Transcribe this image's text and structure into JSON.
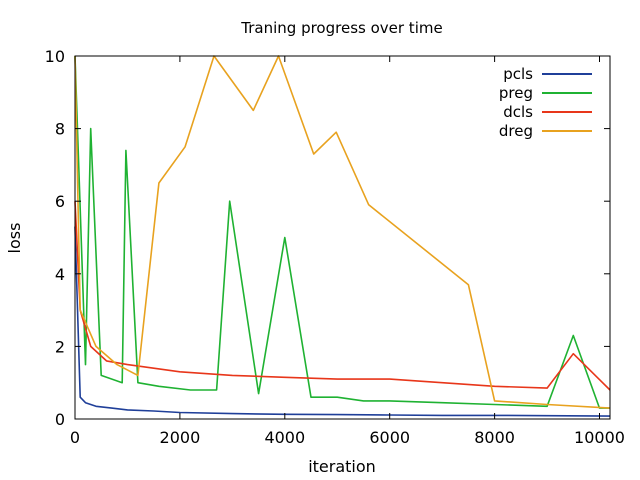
{
  "chart_data": {
    "type": "line",
    "title": "Traning progress over time",
    "xlabel": "iteration",
    "ylabel": "loss",
    "xlim": [
      0,
      10200
    ],
    "ylim": [
      0,
      10
    ],
    "xticks": [
      0,
      2000,
      4000,
      6000,
      8000,
      10000
    ],
    "yticks": [
      0,
      2,
      4,
      6,
      8,
      10
    ],
    "grid": false,
    "legend_position": "top-right",
    "series": [
      {
        "name": "pcls",
        "color": "#1f3f99",
        "x": [
          0,
          100,
          200,
          400,
          700,
          1000,
          1500,
          2000,
          3000,
          4000,
          5000,
          6000,
          7000,
          8000,
          9000,
          10200
        ],
        "y": [
          5.3,
          0.6,
          0.45,
          0.35,
          0.3,
          0.25,
          0.22,
          0.18,
          0.15,
          0.13,
          0.12,
          0.11,
          0.1,
          0.1,
          0.09,
          0.08
        ]
      },
      {
        "name": "preg",
        "color": "#1fb232",
        "x": [
          0,
          200,
          300,
          500,
          900,
          970,
          1200,
          1600,
          2200,
          2700,
          2950,
          3500,
          4000,
          4500,
          5000,
          5500,
          6000,
          7000,
          8000,
          9000,
          9500,
          10000,
          10200
        ],
        "y": [
          10,
          1.5,
          8.0,
          1.2,
          1.0,
          7.4,
          1.0,
          0.9,
          0.8,
          0.8,
          6.0,
          0.7,
          5.0,
          0.6,
          0.6,
          0.5,
          0.5,
          0.45,
          0.4,
          0.35,
          2.3,
          0.3,
          0.3
        ]
      },
      {
        "name": "dcls",
        "color": "#e8361a",
        "x": [
          0,
          100,
          300,
          600,
          1000,
          1500,
          2000,
          3000,
          4000,
          5000,
          6000,
          7000,
          8000,
          9000,
          9500,
          10200
        ],
        "y": [
          6.0,
          3.0,
          2.0,
          1.6,
          1.5,
          1.4,
          1.3,
          1.2,
          1.15,
          1.1,
          1.1,
          1.0,
          0.9,
          0.85,
          1.8,
          0.8
        ]
      },
      {
        "name": "dreg",
        "color": "#e8a21f",
        "x": [
          0,
          100,
          400,
          800,
          1200,
          1600,
          2100,
          2650,
          3400,
          3880,
          4550,
          4980,
          5600,
          7500,
          8000,
          9000,
          10200
        ],
        "y": [
          10,
          3.0,
          2.0,
          1.5,
          1.2,
          6.5,
          7.5,
          10,
          8.5,
          10,
          7.3,
          7.9,
          5.9,
          3.7,
          0.5,
          0.4,
          0.3
        ]
      }
    ]
  }
}
